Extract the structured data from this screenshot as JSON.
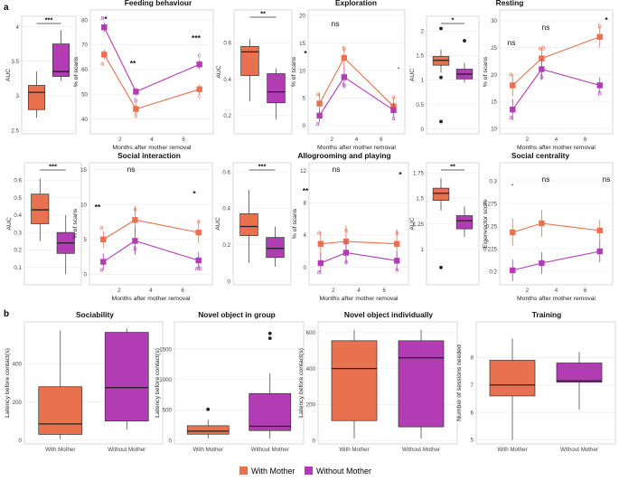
{
  "panel_labels": [
    "a",
    "b"
  ],
  "legend": [
    {
      "name": "With Mother",
      "color": "#e9714f"
    },
    {
      "name": "Without Mother",
      "color": "#b23cb3"
    }
  ],
  "colors": {
    "with": "#e9714f",
    "without": "#b23cb3",
    "panel_border": "#d0d0d0",
    "grid": "#ebebeb"
  },
  "chart_data": [
    {
      "id": "feeding",
      "type": "line",
      "title": "Feeding behaviour",
      "xlabel": "Months after mother removal",
      "ylabel": "% of scans",
      "x": [
        1,
        3,
        7
      ],
      "xlim": [
        0.3,
        7.7
      ],
      "xticks": [
        2,
        4,
        6
      ],
      "ylim": [
        34,
        84
      ],
      "yticks": [
        40,
        50,
        60,
        70,
        80
      ],
      "series": [
        {
          "name": "With Mother",
          "values": [
            66,
            44,
            52
          ],
          "err": [
            2,
            2,
            2
          ],
          "letters": [
            "a",
            "b",
            "c"
          ]
        },
        {
          "name": "Without Mother",
          "values": [
            77,
            51,
            62
          ],
          "err": [
            2,
            1.5,
            2
          ],
          "letters": [
            "a",
            "b",
            "c"
          ]
        }
      ],
      "annotations": [
        "*",
        "**",
        "***"
      ]
    },
    {
      "id": "feeding-auc",
      "type": "box",
      "ylabel": "AUC",
      "ylim": [
        2.45,
        4.15
      ],
      "yticks": [
        2.5,
        3.0,
        3.5,
        4.0
      ],
      "groups": [
        {
          "name": "With Mother",
          "min": 2.68,
          "q1": 2.8,
          "median": 3.05,
          "q3": 3.15,
          "max": 3.35
        },
        {
          "name": "Without Mother",
          "min": 3.22,
          "q1": 3.28,
          "median": 3.35,
          "q3": 3.75,
          "max": 3.95
        }
      ],
      "signif": "***"
    },
    {
      "id": "exploration",
      "type": "line",
      "title": "Exploration",
      "xlabel": "Months after mother removal",
      "ylabel": "% of scans",
      "x": [
        1,
        3,
        7
      ],
      "xlim": [
        0.3,
        7.7
      ],
      "xticks": [
        2,
        4,
        6
      ],
      "ylim": [
        -1.5,
        21
      ],
      "yticks": [
        0,
        5,
        10,
        15,
        20
      ],
      "series": [
        {
          "name": "With Mother",
          "values": [
            4,
            12.3,
            3.5
          ],
          "err": [
            2,
            2,
            1.5
          ],
          "letters": [
            "a",
            "b",
            "a"
          ]
        },
        {
          "name": "Without Mother",
          "values": [
            1.8,
            8.8,
            2.8
          ],
          "err": [
            1.2,
            2,
            1.2
          ],
          "letters": [
            "a",
            "b",
            "a"
          ]
        }
      ],
      "annotations": [
        "*",
        "ns",
        "."
      ]
    },
    {
      "id": "exploration-auc-left",
      "type": "box",
      "ylabel": "AUC",
      "ylim": [
        0.1,
        0.78
      ],
      "yticks": [
        0.2,
        0.4,
        0.6
      ],
      "groups": [
        {
          "name": "With Mother",
          "min": 0.28,
          "q1": 0.42,
          "median": 0.55,
          "q3": 0.58,
          "max": 0.62
        },
        {
          "name": "Without Mother",
          "min": 0.18,
          "q1": 0.27,
          "median": 0.33,
          "q3": 0.43,
          "max": 0.46
        }
      ],
      "signif": "**"
    },
    {
      "id": "exploration-auc-right",
      "type": "box",
      "ylabel": "AUC",
      "ylim": [
        -0.1,
        2.3
      ],
      "yticks": [
        0.0,
        0.5,
        1.0,
        1.5,
        2.0
      ],
      "groups": [
        {
          "name": "With Mother",
          "min": 1.15,
          "q1": 1.3,
          "median": 1.4,
          "q3": 1.48,
          "max": 1.62,
          "outliers": [
            2.05,
            1.05,
            0.15
          ]
        },
        {
          "name": "Without Mother",
          "min": 0.95,
          "q1": 1.02,
          "median": 1.12,
          "q3": 1.22,
          "max": 1.35,
          "outliers": [
            1.8
          ]
        }
      ],
      "signif": "*"
    },
    {
      "id": "resting",
      "type": "line",
      "title": "Resting",
      "xlabel": "Months after mother removal",
      "ylabel": "% of scans",
      "x": [
        1,
        3,
        7
      ],
      "xlim": [
        0.3,
        7.7
      ],
      "xticks": [
        2,
        4,
        6
      ],
      "ylim": [
        9,
        32
      ],
      "yticks": [
        10,
        15,
        20,
        25,
        30
      ],
      "series": [
        {
          "name": "With Mother",
          "values": [
            18,
            23,
            27
          ],
          "err": [
            2,
            2,
            2
          ],
          "letters": [
            "a",
            "ab",
            "b"
          ]
        },
        {
          "name": "Without Mother",
          "values": [
            13.5,
            21,
            18
          ],
          "err": [
            2,
            2,
            1.5
          ],
          "letters": [
            "a",
            "b",
            "b"
          ]
        }
      ],
      "annotations": [
        "ns",
        "ns",
        "*"
      ]
    },
    {
      "id": "social-auc",
      "type": "box",
      "ylabel": "AUC",
      "ylim": [
        0.0,
        0.7
      ],
      "yticks": [
        0.1,
        0.2,
        0.3,
        0.4,
        0.5,
        0.6
      ],
      "groups": [
        {
          "name": "With Mother",
          "min": 0.25,
          "q1": 0.35,
          "median": 0.43,
          "q3": 0.52,
          "max": 0.61
        },
        {
          "name": "Without Mother",
          "min": 0.06,
          "q1": 0.18,
          "median": 0.24,
          "q3": 0.3,
          "max": 0.4
        }
      ],
      "signif": "***"
    },
    {
      "id": "social-interaction",
      "type": "line",
      "title": "Social interaction",
      "xlabel": "Months after mother removal",
      "ylabel": "% of scans",
      "x": [
        1,
        3,
        7
      ],
      "xlim": [
        0.3,
        7.7
      ],
      "xticks": [
        2,
        4,
        6
      ],
      "ylim": [
        -1.5,
        16
      ],
      "yticks": [
        0,
        5,
        10,
        15
      ],
      "series": [
        {
          "name": "With Mother",
          "values": [
            5,
            7.8,
            6
          ],
          "err": [
            1.2,
            2,
            1.5
          ],
          "letters": [
            "a",
            "a",
            "a"
          ]
        },
        {
          "name": "Without Mother",
          "values": [
            1.8,
            4.8,
            2
          ],
          "err": [
            1.2,
            2,
            1.2
          ],
          "letters": [
            "a",
            "b",
            "ab"
          ]
        }
      ],
      "annotations": [
        "**",
        "ns",
        "*"
      ]
    },
    {
      "id": "allogrooming-auc",
      "type": "box",
      "ylabel": "AUC",
      "ylim": [
        -0.02,
        0.65
      ],
      "yticks": [
        0.0,
        0.2,
        0.4,
        0.6
      ],
      "groups": [
        {
          "name": "With Mother",
          "min": 0.1,
          "q1": 0.25,
          "median": 0.3,
          "q3": 0.37,
          "max": 0.5
        },
        {
          "name": "Without Mother",
          "min": 0.08,
          "q1": 0.13,
          "median": 0.18,
          "q3": 0.24,
          "max": 0.3
        }
      ],
      "signif": "***"
    },
    {
      "id": "allogrooming",
      "type": "line",
      "title": "Allogrooming and playing",
      "xlabel": "Months after mother removal",
      "ylabel": "% of scans",
      "x": [
        1,
        3,
        7
      ],
      "xlim": [
        0.3,
        7.7
      ],
      "xticks": [
        2,
        4,
        6
      ],
      "ylim": [
        -2.2,
        13
      ],
      "yticks": [
        0,
        4,
        8,
        12
      ],
      "series": [
        {
          "name": "With Mother",
          "values": [
            2.9,
            3.2,
            2.9
          ],
          "err": [
            1.5,
            2,
            1.8
          ],
          "letters": [
            "a",
            "a",
            "a"
          ]
        },
        {
          "name": "Without Mother",
          "values": [
            0.5,
            1.8,
            0.8
          ],
          "err": [
            1.2,
            1.5,
            1.2
          ],
          "letters": [
            "a",
            "a",
            "a"
          ]
        }
      ],
      "annotations": [
        "**",
        "ns",
        "*"
      ]
    },
    {
      "id": "allogrooming-auc-right",
      "type": "box",
      "ylabel": "AUC",
      "ylim": [
        0.65,
        1.85
      ],
      "yticks": [
        1.0,
        1.25,
        1.5,
        1.75
      ],
      "groups": [
        {
          "name": "With Mother",
          "min": 1.38,
          "q1": 1.48,
          "median": 1.55,
          "q3": 1.6,
          "max": 1.7,
          "outliers": [
            0.82
          ]
        },
        {
          "name": "Without Mother",
          "min": 1.12,
          "q1": 1.2,
          "median": 1.28,
          "q3": 1.33,
          "max": 1.42
        }
      ],
      "signif": "**"
    },
    {
      "id": "social-centrality",
      "type": "line",
      "title": "Social centrality",
      "xlabel": "Months after mother removal",
      "ylabel": "Eigenvector score",
      "x": [
        1,
        3,
        7
      ],
      "xlim": [
        0.3,
        7.7
      ],
      "xticks": [
        2,
        4,
        6
      ],
      "ylim": [
        0.185,
        0.32
      ],
      "yticks": [
        0.2,
        0.225,
        0.25,
        0.275,
        0.3
      ],
      "series": [
        {
          "name": "With Mother",
          "values": [
            0.243,
            0.253,
            0.245
          ],
          "err": [
            0.015,
            0.015,
            0.012
          ],
          "letters": [
            "",
            "",
            ""
          ]
        },
        {
          "name": "Without Mother",
          "values": [
            0.201,
            0.209,
            0.222
          ],
          "err": [
            0.012,
            0.012,
            0.012
          ],
          "letters": [
            "",
            "",
            ""
          ]
        }
      ],
      "annotations": [
        ".",
        "ns",
        "ns"
      ]
    },
    {
      "id": "sociability",
      "type": "box",
      "title": "Sociability",
      "ylabel": "Latency before contact(s)",
      "categories": [
        "With Mother",
        "Without Mother"
      ],
      "ylim": [
        -20,
        620
      ],
      "yticks": [
        0,
        200,
        400
      ],
      "groups": [
        {
          "name": "With Mother",
          "min": 5,
          "q1": 30,
          "median": 85,
          "q3": 280,
          "max": 575
        },
        {
          "name": "Without Mother",
          "min": 55,
          "q1": 100,
          "median": 275,
          "q3": 565,
          "max": 585
        }
      ]
    },
    {
      "id": "novel-object-group",
      "type": "box",
      "title": "Novel object in group",
      "ylabel": "Latency before contact(s)",
      "categories": [
        "With Mother",
        "Without Mother"
      ],
      "ylim": [
        -60,
        1950
      ],
      "yticks": [
        0,
        500,
        1000,
        1500
      ],
      "groups": [
        {
          "name": "With Mother",
          "min": 30,
          "q1": 100,
          "median": 150,
          "q3": 240,
          "max": 340,
          "outliers": [
            510
          ]
        },
        {
          "name": "Without Mother",
          "min": 30,
          "q1": 160,
          "median": 230,
          "q3": 770,
          "max": 1100,
          "outliers": [
            1680,
            1760
          ]
        }
      ]
    },
    {
      "id": "novel-object-individual",
      "type": "box",
      "title": "Novel object individually",
      "ylabel": "Latency before contact(s)",
      "categories": [
        "With Mother",
        "Without Mother"
      ],
      "ylim": [
        -20,
        660
      ],
      "yticks": [
        0,
        200,
        400,
        600
      ],
      "groups": [
        {
          "name": "With Mother",
          "min": 10,
          "q1": 110,
          "median": 400,
          "q3": 555,
          "max": 615
        },
        {
          "name": "Without Mother",
          "min": 10,
          "q1": 75,
          "median": 460,
          "q3": 555,
          "max": 615
        }
      ]
    },
    {
      "id": "training",
      "type": "box",
      "title": "Training",
      "ylabel": "Number of sessions needed",
      "categories": [
        "With Mother",
        "Without Mother"
      ],
      "ylim": [
        4.85,
        9.3
      ],
      "yticks": [
        5,
        6,
        7,
        8
      ],
      "groups": [
        {
          "name": "With Mother",
          "min": 5,
          "q1": 6.6,
          "median": 7,
          "q3": 7.9,
          "max": 8.7
        },
        {
          "name": "Without Mother",
          "min": 6.1,
          "q1": 7.1,
          "median": 7.15,
          "q3": 7.8,
          "max": 8.2
        }
      ]
    }
  ]
}
